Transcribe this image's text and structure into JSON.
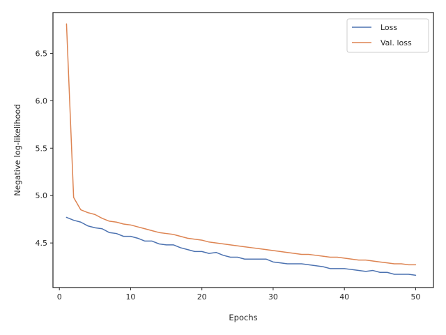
{
  "chart_data": {
    "type": "line",
    "title": "",
    "xlabel": "Epochs",
    "ylabel": "Negative log-likelihood",
    "xlim": [
      -0.9,
      52.5
    ],
    "ylim": [
      4.03,
      6.93
    ],
    "xticks": [
      0,
      10,
      20,
      30,
      40,
      50
    ],
    "yticks": [
      4.5,
      5.0,
      5.5,
      6.0,
      6.5
    ],
    "ytick_labels": [
      "4.5",
      "5.0",
      "5.5",
      "6.0",
      "6.5"
    ],
    "grid": false,
    "legend_position": "top-right",
    "x": [
      1,
      2,
      3,
      4,
      5,
      6,
      7,
      8,
      9,
      10,
      11,
      12,
      13,
      14,
      15,
      16,
      17,
      18,
      19,
      20,
      21,
      22,
      23,
      24,
      25,
      26,
      27,
      28,
      29,
      30,
      31,
      32,
      33,
      34,
      35,
      36,
      37,
      38,
      39,
      40,
      41,
      42,
      43,
      44,
      45,
      46,
      47,
      48,
      49,
      50
    ],
    "series": [
      {
        "name": "Loss",
        "color": "#4c72b0",
        "values": [
          4.77,
          4.74,
          4.72,
          4.68,
          4.66,
          4.65,
          4.61,
          4.6,
          4.57,
          4.57,
          4.55,
          4.52,
          4.52,
          4.49,
          4.48,
          4.48,
          4.45,
          4.43,
          4.41,
          4.41,
          4.39,
          4.4,
          4.37,
          4.35,
          4.35,
          4.33,
          4.33,
          4.33,
          4.33,
          4.3,
          4.29,
          4.28,
          4.28,
          4.28,
          4.27,
          4.26,
          4.25,
          4.23,
          4.23,
          4.23,
          4.22,
          4.21,
          4.2,
          4.21,
          4.19,
          4.19,
          4.17,
          4.17,
          4.17,
          4.16
        ]
      },
      {
        "name": "Val. loss",
        "color": "#dd8452",
        "values": [
          6.81,
          4.98,
          4.85,
          4.82,
          4.8,
          4.76,
          4.73,
          4.72,
          4.7,
          4.69,
          4.67,
          4.65,
          4.63,
          4.61,
          4.6,
          4.59,
          4.57,
          4.55,
          4.54,
          4.53,
          4.51,
          4.5,
          4.49,
          4.48,
          4.47,
          4.46,
          4.45,
          4.44,
          4.43,
          4.42,
          4.41,
          4.4,
          4.39,
          4.38,
          4.38,
          4.37,
          4.36,
          4.35,
          4.35,
          4.34,
          4.33,
          4.32,
          4.32,
          4.31,
          4.3,
          4.29,
          4.28,
          4.28,
          4.27,
          4.27
        ]
      }
    ]
  }
}
